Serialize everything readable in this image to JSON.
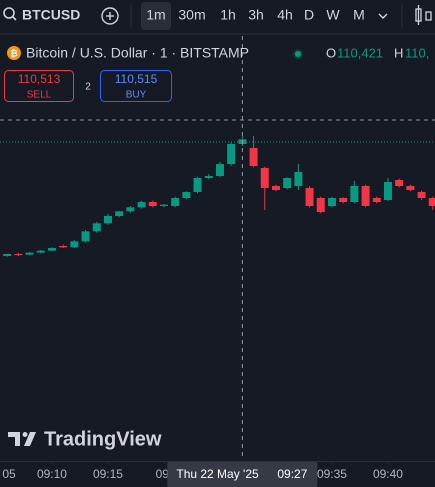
{
  "toolbar": {
    "symbol": "BTCUSD",
    "intervals": [
      "1m",
      "30m",
      "1h",
      "3h",
      "4h",
      "D",
      "W",
      "M"
    ]
  },
  "legend": {
    "title": "Bitcoin / U.S. Dollar · 1 · BITSTAMP",
    "open_label": "O",
    "open_value": "110,421",
    "high_label": "H",
    "high_value": "110,"
  },
  "trade": {
    "sell_price": "110,513",
    "sell_label": "SELL",
    "spread": "2",
    "buy_price": "110,515",
    "buy_label": "BUY"
  },
  "watermark": "TradingView",
  "chart_data": {
    "type": "candlestick",
    "x": [
      6,
      7,
      8,
      9,
      10,
      11,
      12,
      13,
      14,
      15,
      16,
      17,
      18,
      19,
      20,
      21,
      22,
      23,
      24,
      25,
      26,
      27,
      28,
      29,
      30,
      31,
      32,
      33,
      34,
      35,
      36,
      37,
      38,
      39,
      40,
      41,
      42,
      43,
      44
    ],
    "open": [
      110421,
      110424,
      110423,
      110426,
      110429,
      110436,
      110434,
      110443,
      110458,
      110470,
      110481,
      110488,
      110494,
      110502,
      110496,
      110496,
      110508,
      110517,
      110538,
      110541,
      110559,
      110589,
      110583,
      110553,
      110526,
      110523,
      110526,
      110523,
      110508,
      110496,
      110508,
      110502,
      110526,
      110508,
      110505,
      110535,
      110526,
      110517,
      110508
    ],
    "high": [
      110424,
      110426,
      110427,
      110430,
      110434,
      110438,
      110445,
      110460,
      110472,
      110484,
      110489,
      110496,
      110504,
      110504,
      110499,
      110510,
      110518,
      110540,
      110544,
      110562,
      110592,
      110601,
      110601,
      110555,
      110528,
      110539,
      110559,
      110526,
      110510,
      110510,
      110509,
      110534,
      110528,
      110510,
      110538,
      110537,
      110528,
      110519,
      110510
    ],
    "low": [
      110420,
      110421,
      110422,
      110425,
      110428,
      110433,
      110433,
      110441,
      110456,
      110468,
      110479,
      110486,
      110492,
      110494,
      110494,
      110494,
      110506,
      110515,
      110536,
      110539,
      110556,
      110586,
      110554,
      110490,
      110518,
      110521,
      110520,
      110494,
      110485,
      110494,
      110500,
      110500,
      110494,
      110500,
      110503,
      110524,
      110518,
      110505,
      110490
    ],
    "close": [
      110424,
      110423,
      110426,
      110429,
      110433,
      110434,
      110443,
      110458,
      110470,
      110481,
      110488,
      110494,
      110502,
      110496,
      110498,
      110508,
      110517,
      110538,
      110541,
      110559,
      110589,
      110596,
      110556,
      110523,
      110520,
      110538,
      110547,
      110496,
      110487,
      110508,
      110502,
      110526,
      110496,
      110502,
      110532,
      110526,
      110520,
      110508,
      110496
    ],
    "up_color": "#089981",
    "down_color": "#f23645",
    "xlim": [
      5.36,
      44.2
    ],
    "ylim": [
      110115,
      110640
    ],
    "xticks": [
      {
        "value": 5,
        "label": "05"
      },
      {
        "value": 10,
        "label": "09:10"
      },
      {
        "value": 15,
        "label": "09:15"
      },
      {
        "value": 20,
        "label": "09:"
      },
      {
        "value": 35,
        "label": "09:35"
      },
      {
        "value": 40,
        "label": "09:40"
      }
    ],
    "crosshair": {
      "x": 27,
      "y": 110625,
      "date_label": "Thu 22 May '25",
      "time_label": "09:27"
    }
  }
}
